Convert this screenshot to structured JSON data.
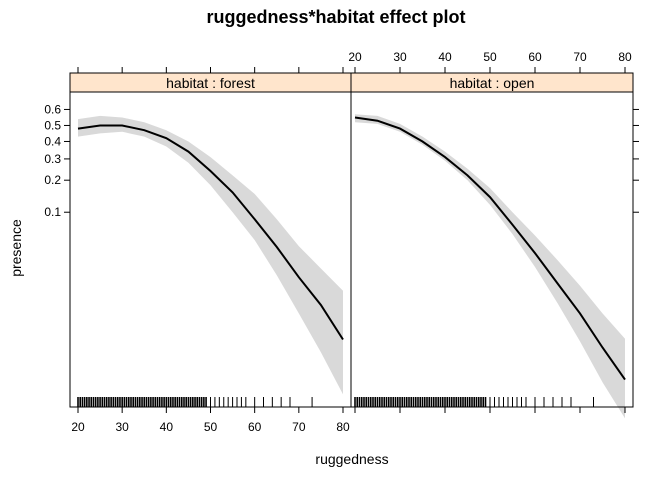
{
  "chart_data": {
    "type": "line",
    "title": "ruggedness*habitat effect plot",
    "xlabel": "ruggedness",
    "ylabel": "presence",
    "xlim": [
      18,
      82
    ],
    "ylim": [
      0.0008,
      0.7
    ],
    "y_scale": "logit",
    "x_ticks": [
      20,
      30,
      40,
      50,
      60,
      70,
      80
    ],
    "y_ticks": [
      0.1,
      0.2,
      0.3,
      0.4,
      0.5,
      0.6
    ],
    "panels": [
      {
        "strip": "habitat : forest",
        "x": [
          20,
          25,
          30,
          35,
          40,
          45,
          50,
          55,
          60,
          65,
          70,
          75,
          80
        ],
        "fit": [
          0.48,
          0.5,
          0.5,
          0.47,
          0.42,
          0.34,
          0.24,
          0.155,
          0.085,
          0.044,
          0.021,
          0.0105,
          0.0044
        ],
        "lower": [
          0.43,
          0.45,
          0.46,
          0.43,
          0.37,
          0.28,
          0.18,
          0.1,
          0.052,
          0.022,
          0.0085,
          0.0032,
          0.0011
        ],
        "upper": [
          0.54,
          0.56,
          0.55,
          0.52,
          0.47,
          0.4,
          0.31,
          0.22,
          0.15,
          0.085,
          0.045,
          0.026,
          0.015
        ]
      },
      {
        "strip": "habitat : open",
        "x": [
          20,
          25,
          30,
          35,
          40,
          45,
          50,
          55,
          60,
          65,
          70,
          75,
          80
        ],
        "fit": [
          0.55,
          0.53,
          0.48,
          0.4,
          0.31,
          0.22,
          0.14,
          0.075,
          0.038,
          0.018,
          0.0085,
          0.0036,
          0.0016
        ],
        "lower": [
          0.52,
          0.51,
          0.46,
          0.38,
          0.29,
          0.2,
          0.118,
          0.06,
          0.027,
          0.011,
          0.0042,
          0.0015,
          0.0006
        ],
        "upper": [
          0.57,
          0.56,
          0.51,
          0.43,
          0.34,
          0.25,
          0.17,
          0.1,
          0.058,
          0.032,
          0.017,
          0.0085,
          0.0045
        ]
      }
    ],
    "rug": {
      "dense_range": [
        20,
        49
      ],
      "sparse_ticks": [
        50,
        51,
        52,
        53,
        54,
        55,
        56,
        57,
        58,
        60,
        62,
        64,
        66,
        68,
        73
      ]
    },
    "colors": {
      "strip": "#ffe5cc",
      "band": "#d9d9d9",
      "line": "#000000"
    }
  }
}
